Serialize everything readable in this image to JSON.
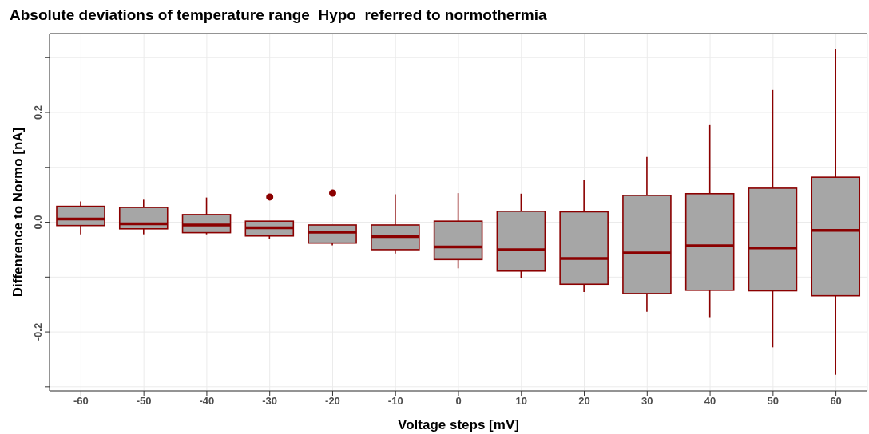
{
  "chart_data": {
    "type": "box",
    "title": "Absolute deviations of temperature range  Hypo  referred to normothermia",
    "xlabel": "Voltage steps [mV]",
    "ylabel": "Diffenrence to Normo [nA]",
    "categories": [
      "-60",
      "-50",
      "-40",
      "-30",
      "-20",
      "-10",
      "0",
      "10",
      "20",
      "30",
      "40",
      "50",
      "60"
    ],
    "color": "#8b0000",
    "grid": true,
    "ylim": [
      -0.3075,
      0.344
    ],
    "yticks": [
      {
        "value": -0.3,
        "label": null
      },
      {
        "value": -0.2,
        "label": "-0.2"
      },
      {
        "value": -0.1,
        "label": null
      },
      {
        "value": 0,
        "label": "0.0"
      },
      {
        "value": 0.1,
        "label": null
      },
      {
        "value": 0.2,
        "label": "0.2"
      },
      {
        "value": 0.3,
        "label": null
      }
    ],
    "boxes": [
      {
        "low": -0.022,
        "q1": -0.006,
        "median": 0.006,
        "q3": 0.029,
        "high": 0.038
      },
      {
        "low": -0.022,
        "q1": -0.012,
        "median": -0.003,
        "q3": 0.027,
        "high": 0.041
      },
      {
        "low": -0.022,
        "q1": -0.019,
        "median": -0.005,
        "q3": 0.014,
        "high": 0.045
      },
      {
        "low": -0.03,
        "q1": -0.025,
        "median": -0.01,
        "q3": 0.002,
        "high": 0.002,
        "outliers": [
          0.046
        ]
      },
      {
        "low": -0.042,
        "q1": -0.038,
        "median": -0.018,
        "q3": -0.005,
        "high": -0.005,
        "outliers": [
          0.053
        ]
      },
      {
        "low": -0.057,
        "q1": -0.05,
        "median": -0.026,
        "q3": -0.005,
        "high": 0.051
      },
      {
        "low": -0.084,
        "q1": -0.068,
        "median": -0.045,
        "q3": 0.002,
        "high": 0.053
      },
      {
        "low": -0.102,
        "q1": -0.089,
        "median": -0.05,
        "q3": 0.02,
        "high": 0.052
      },
      {
        "low": -0.127,
        "q1": -0.113,
        "median": -0.066,
        "q3": 0.019,
        "high": 0.078
      },
      {
        "low": -0.163,
        "q1": -0.13,
        "median": -0.056,
        "q3": 0.049,
        "high": 0.119
      },
      {
        "low": -0.173,
        "q1": -0.124,
        "median": -0.043,
        "q3": 0.052,
        "high": 0.177
      },
      {
        "low": -0.228,
        "q1": -0.125,
        "median": -0.047,
        "q3": 0.062,
        "high": 0.241
      },
      {
        "low": -0.278,
        "q1": -0.134,
        "median": -0.015,
        "q3": 0.082,
        "high": 0.316
      }
    ]
  }
}
